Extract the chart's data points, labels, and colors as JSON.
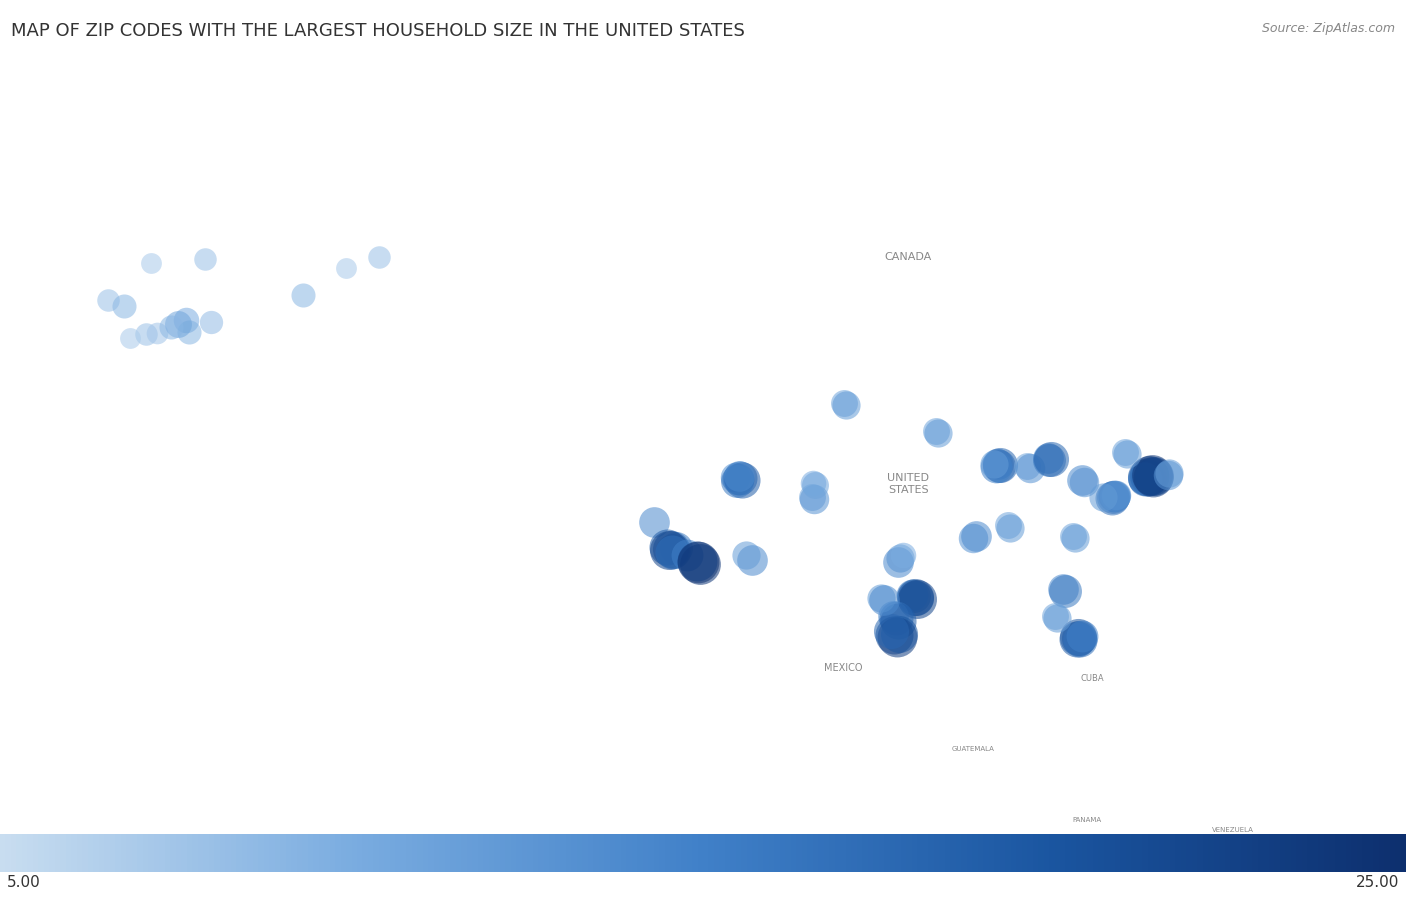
{
  "title": "MAP OF ZIP CODES WITH THE LARGEST HOUSEHOLD SIZE IN THE UNITED STATES",
  "source": "Source: ZipAtlas.com",
  "colorbar_min": 5.0,
  "colorbar_max": 25.0,
  "colorbar_label_min": "5.00",
  "colorbar_label_max": "25.00",
  "background_color": "#cdd8e3",
  "land_color": "#f0f0f0",
  "border_color": "#adbbc7",
  "ocean_color": "#cdd8e3",
  "title_color": "#333333",
  "title_fontsize": 13,
  "dot_alpha": 0.55,
  "dot_base_size": 300,
  "map_extent": [
    -180,
    -50,
    15,
    76
  ],
  "text_labels": [
    {
      "text": "CANADA",
      "lon": -96,
      "lat": 61,
      "fontsize": 8
    },
    {
      "text": "UNITED\nSTATES",
      "lon": -96,
      "lat": 40,
      "fontsize": 8
    },
    {
      "text": "MEXICO",
      "lon": -102,
      "lat": 23,
      "fontsize": 7
    },
    {
      "text": "CUBA",
      "lon": -79,
      "lat": 22,
      "fontsize": 6
    },
    {
      "text": "GUATEMALA",
      "lon": -90,
      "lat": 15.5,
      "fontsize": 5
    },
    {
      "text": "PANAMA",
      "lon": -79.5,
      "lat": 9,
      "fontsize": 5
    },
    {
      "text": "VENEZUELA",
      "lon": -66,
      "lat": 8,
      "fontsize": 5
    }
  ],
  "points": [
    {
      "lon": -166.5,
      "lat": 53.9,
      "val": 8
    },
    {
      "lon": -168.0,
      "lat": 53.5,
      "val": 7
    },
    {
      "lon": -162.5,
      "lat": 54.1,
      "val": 9
    },
    {
      "lon": -165.5,
      "lat": 54.0,
      "val": 7.5
    },
    {
      "lon": -170.0,
      "lat": 57.0,
      "val": 8
    },
    {
      "lon": -168.5,
      "lat": 56.5,
      "val": 9
    },
    {
      "lon": -166.0,
      "lat": 60.5,
      "val": 7
    },
    {
      "lon": -161.0,
      "lat": 60.8,
      "val": 8
    },
    {
      "lon": -160.5,
      "lat": 55.0,
      "val": 8.5
    },
    {
      "lon": -152.0,
      "lat": 57.5,
      "val": 9
    },
    {
      "lon": -148.0,
      "lat": 60.0,
      "val": 7
    },
    {
      "lon": -145.0,
      "lat": 61.0,
      "val": 8
    },
    {
      "lon": -162.8,
      "lat": 55.2,
      "val": 10
    },
    {
      "lon": -163.5,
      "lat": 54.8,
      "val": 11
    },
    {
      "lon": -164.2,
      "lat": 54.5,
      "val": 9
    },
    {
      "lon": -119.5,
      "lat": 36.5,
      "val": 14
    },
    {
      "lon": -118.0,
      "lat": 34.0,
      "val": 20
    },
    {
      "lon": -117.8,
      "lat": 33.8,
      "val": 18
    },
    {
      "lon": -117.5,
      "lat": 34.1,
      "val": 16
    },
    {
      "lon": -118.3,
      "lat": 34.2,
      "val": 19
    },
    {
      "lon": -118.1,
      "lat": 33.9,
      "val": 22
    },
    {
      "lon": -117.9,
      "lat": 33.7,
      "val": 17
    },
    {
      "lon": -116.5,
      "lat": 33.5,
      "val": 15
    },
    {
      "lon": -115.5,
      "lat": 32.8,
      "val": 25
    },
    {
      "lon": -115.3,
      "lat": 32.6,
      "val": 24
    },
    {
      "lon": -115.6,
      "lat": 32.9,
      "val": 23
    },
    {
      "lon": -110.5,
      "lat": 33.0,
      "val": 14
    },
    {
      "lon": -111.0,
      "lat": 33.5,
      "val": 12
    },
    {
      "lon": -104.9,
      "lat": 38.8,
      "val": 11
    },
    {
      "lon": -104.7,
      "lat": 38.6,
      "val": 13
    },
    {
      "lon": -96.8,
      "lat": 33.2,
      "val": 12
    },
    {
      "lon": -97.0,
      "lat": 32.8,
      "val": 14
    },
    {
      "lon": -96.5,
      "lat": 33.5,
      "val": 10
    },
    {
      "lon": -95.5,
      "lat": 29.7,
      "val": 16
    },
    {
      "lon": -95.3,
      "lat": 29.5,
      "val": 18
    },
    {
      "lon": -95.7,
      "lat": 29.8,
      "val": 15
    },
    {
      "lon": -95.4,
      "lat": 29.6,
      "val": 20
    },
    {
      "lon": -95.2,
      "lat": 29.4,
      "val": 22
    },
    {
      "lon": -97.4,
      "lat": 27.8,
      "val": 14
    },
    {
      "lon": -97.2,
      "lat": 27.6,
      "val": 17
    },
    {
      "lon": -97.0,
      "lat": 27.4,
      "val": 19
    },
    {
      "lon": -97.3,
      "lat": 26.1,
      "val": 21
    },
    {
      "lon": -97.1,
      "lat": 25.9,
      "val": 23
    },
    {
      "lon": -96.9,
      "lat": 26.2,
      "val": 20
    },
    {
      "lon": -97.6,
      "lat": 26.4,
      "val": 18
    },
    {
      "lon": -98.5,
      "lat": 29.5,
      "val": 12
    },
    {
      "lon": -98.3,
      "lat": 29.3,
      "val": 14
    },
    {
      "lon": -87.7,
      "lat": 41.9,
      "val": 14
    },
    {
      "lon": -87.6,
      "lat": 41.7,
      "val": 16
    },
    {
      "lon": -87.8,
      "lat": 42.0,
      "val": 13
    },
    {
      "lon": -87.5,
      "lat": 41.8,
      "val": 18
    },
    {
      "lon": -87.9,
      "lat": 41.6,
      "val": 15
    },
    {
      "lon": -88.1,
      "lat": 41.9,
      "val": 12
    },
    {
      "lon": -85.0,
      "lat": 41.7,
      "val": 11
    },
    {
      "lon": -84.8,
      "lat": 41.5,
      "val": 13
    },
    {
      "lon": -83.1,
      "lat": 42.4,
      "val": 14
    },
    {
      "lon": -83.0,
      "lat": 42.2,
      "val": 16
    },
    {
      "lon": -82.8,
      "lat": 42.3,
      "val": 18
    },
    {
      "lon": -74.0,
      "lat": 40.7,
      "val": 20
    },
    {
      "lon": -73.8,
      "lat": 40.9,
      "val": 22
    },
    {
      "lon": -73.9,
      "lat": 40.6,
      "val": 19
    },
    {
      "lon": -73.7,
      "lat": 40.8,
      "val": 21
    },
    {
      "lon": -73.6,
      "lat": 40.7,
      "val": 18
    },
    {
      "lon": -74.1,
      "lat": 40.5,
      "val": 17
    },
    {
      "lon": -74.2,
      "lat": 40.6,
      "val": 16
    },
    {
      "lon": -73.5,
      "lat": 40.9,
      "val": 24
    },
    {
      "lon": -73.4,
      "lat": 40.7,
      "val": 23
    },
    {
      "lon": -73.3,
      "lat": 40.8,
      "val": 22
    },
    {
      "lon": -72.0,
      "lat": 40.9,
      "val": 13
    },
    {
      "lon": -71.9,
      "lat": 41.0,
      "val": 12
    },
    {
      "lon": -76.0,
      "lat": 43.0,
      "val": 11
    },
    {
      "lon": -75.8,
      "lat": 42.8,
      "val": 12
    },
    {
      "lon": -80.0,
      "lat": 40.4,
      "val": 14
    },
    {
      "lon": -79.8,
      "lat": 40.2,
      "val": 13
    },
    {
      "lon": -77.0,
      "lat": 38.9,
      "val": 15
    },
    {
      "lon": -77.2,
      "lat": 38.7,
      "val": 17
    },
    {
      "lon": -77.1,
      "lat": 38.8,
      "val": 16
    },
    {
      "lon": -76.9,
      "lat": 38.9,
      "val": 14
    },
    {
      "lon": -76.8,
      "lat": 39.0,
      "val": 13
    },
    {
      "lon": -78.0,
      "lat": 38.8,
      "val": 12
    },
    {
      "lon": -80.8,
      "lat": 35.2,
      "val": 11
    },
    {
      "lon": -80.6,
      "lat": 35.0,
      "val": 12
    },
    {
      "lon": -81.7,
      "lat": 30.3,
      "val": 14
    },
    {
      "lon": -81.5,
      "lat": 30.1,
      "val": 16
    },
    {
      "lon": -80.2,
      "lat": 25.8,
      "val": 18
    },
    {
      "lon": -80.3,
      "lat": 25.9,
      "val": 20
    },
    {
      "lon": -80.4,
      "lat": 25.7,
      "val": 19
    },
    {
      "lon": -80.1,
      "lat": 25.6,
      "val": 17
    },
    {
      "lon": -80.0,
      "lat": 26.0,
      "val": 15
    },
    {
      "lon": -82.5,
      "lat": 27.8,
      "val": 11
    },
    {
      "lon": -82.3,
      "lat": 27.6,
      "val": 12
    },
    {
      "lon": -86.8,
      "lat": 36.2,
      "val": 11
    },
    {
      "lon": -86.6,
      "lat": 36.0,
      "val": 12
    },
    {
      "lon": -90.0,
      "lat": 35.0,
      "val": 13
    },
    {
      "lon": -89.8,
      "lat": 35.2,
      "val": 14
    },
    {
      "lon": -93.5,
      "lat": 44.9,
      "val": 11
    },
    {
      "lon": -93.3,
      "lat": 44.7,
      "val": 12
    },
    {
      "lon": -102.0,
      "lat": 47.5,
      "val": 11
    },
    {
      "lon": -101.8,
      "lat": 47.3,
      "val": 12
    },
    {
      "lon": -112.0,
      "lat": 40.7,
      "val": 13
    },
    {
      "lon": -111.8,
      "lat": 40.5,
      "val": 15
    },
    {
      "lon": -111.6,
      "lat": 40.6,
      "val": 17
    },
    {
      "lon": -111.4,
      "lat": 40.4,
      "val": 19
    },
    {
      "lon": -111.9,
      "lat": 40.3,
      "val": 16
    },
    {
      "lon": -111.7,
      "lat": 40.8,
      "val": 14
    },
    {
      "lon": -104.8,
      "lat": 40.1,
      "val": 10
    },
    {
      "lon": -104.6,
      "lat": 39.9,
      "val": 11
    }
  ]
}
